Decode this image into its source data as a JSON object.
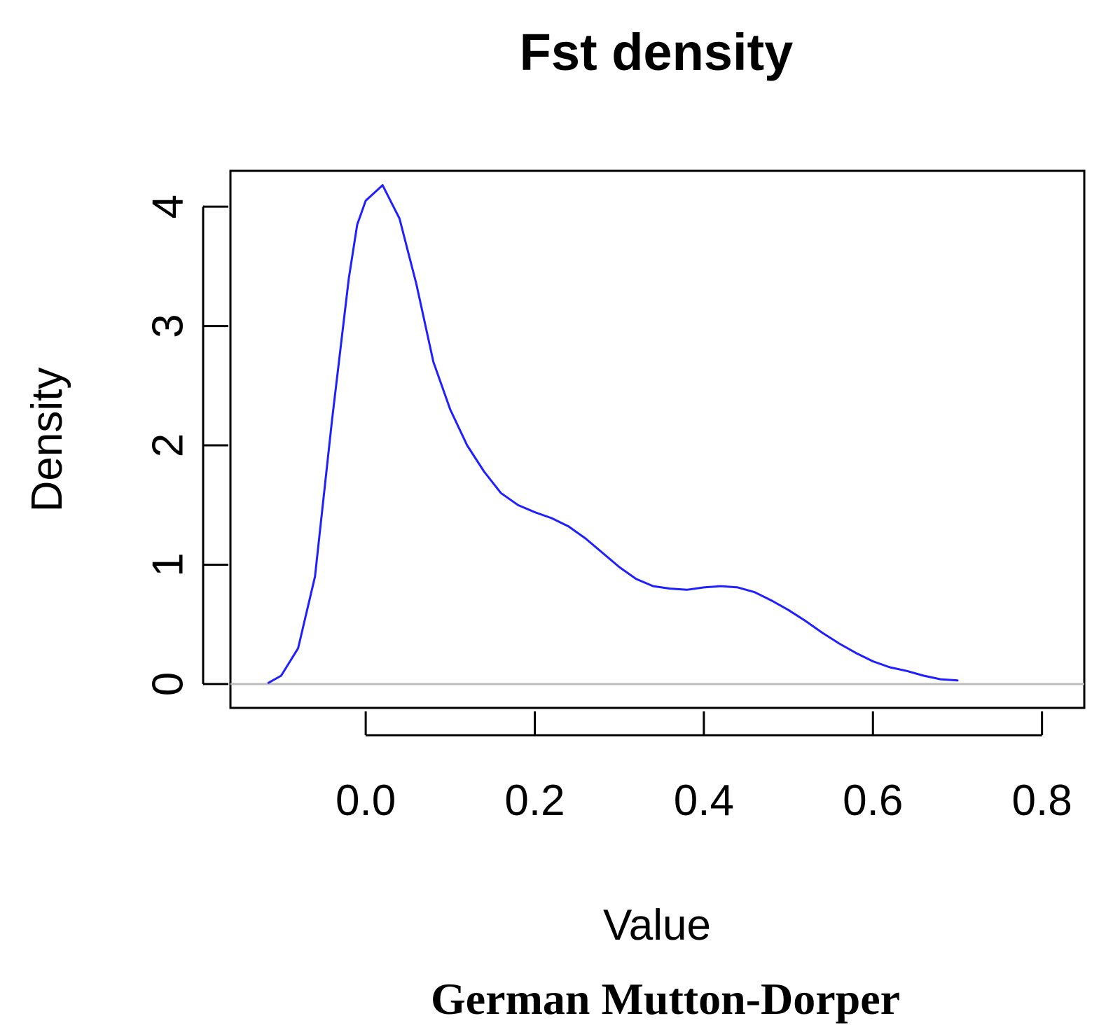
{
  "chart_data": {
    "type": "line",
    "title": "Fst density",
    "xlabel": "Value",
    "ylabel": "Density",
    "caption": "German Mutton-Dorper",
    "xlim": [
      -0.16,
      0.85
    ],
    "ylim": [
      -0.2,
      4.3
    ],
    "x_ticks": [
      0.0,
      0.2,
      0.4,
      0.6,
      0.8
    ],
    "x_tick_labels": [
      "0.0",
      "0.2",
      "0.4",
      "0.6",
      "0.8"
    ],
    "y_ticks": [
      0,
      1,
      2,
      3,
      4
    ],
    "y_tick_labels": [
      "0",
      "1",
      "2",
      "3",
      "4"
    ],
    "baseline": 0,
    "grid": false,
    "series": [
      {
        "color": "#1f1fff",
        "x": [
          -0.115,
          -0.1,
          -0.08,
          -0.06,
          -0.04,
          -0.02,
          -0.01,
          0.0,
          0.02,
          0.04,
          0.06,
          0.08,
          0.1,
          0.12,
          0.14,
          0.16,
          0.18,
          0.2,
          0.22,
          0.24,
          0.26,
          0.28,
          0.3,
          0.32,
          0.34,
          0.36,
          0.38,
          0.4,
          0.42,
          0.44,
          0.46,
          0.48,
          0.5,
          0.52,
          0.54,
          0.56,
          0.58,
          0.6,
          0.62,
          0.64,
          0.66,
          0.68,
          0.7
        ],
        "y": [
          0.01,
          0.07,
          0.3,
          0.9,
          2.2,
          3.4,
          3.85,
          4.05,
          4.18,
          3.9,
          3.35,
          2.7,
          2.3,
          2.0,
          1.78,
          1.6,
          1.5,
          1.44,
          1.39,
          1.32,
          1.22,
          1.1,
          0.98,
          0.88,
          0.82,
          0.8,
          0.79,
          0.81,
          0.82,
          0.81,
          0.77,
          0.7,
          0.62,
          0.53,
          0.43,
          0.34,
          0.26,
          0.19,
          0.14,
          0.11,
          0.07,
          0.04,
          0.03
        ]
      }
    ]
  }
}
